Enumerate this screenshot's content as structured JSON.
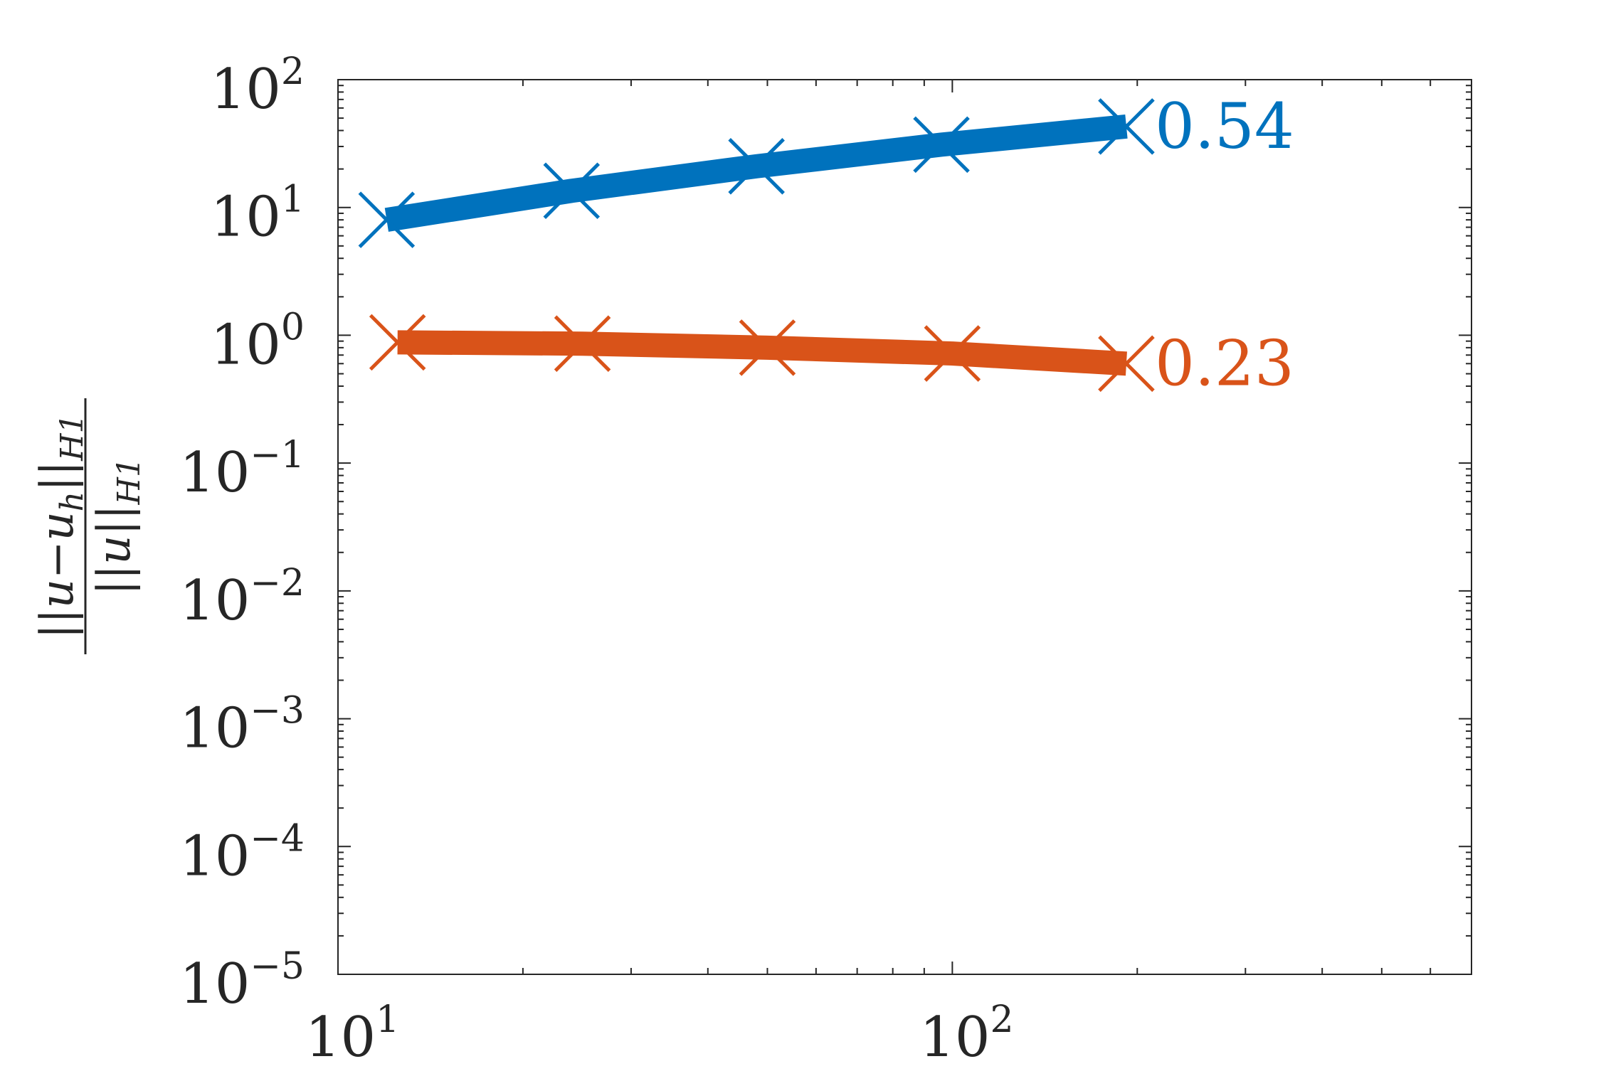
{
  "chart_data": {
    "type": "line",
    "x_scale": "log",
    "y_scale": "log",
    "xlim": [
      10,
      700
    ],
    "ylim": [
      1e-05,
      100
    ],
    "x_ticks": [
      {
        "value": 10,
        "base": "10",
        "exp": "1"
      },
      {
        "value": 100,
        "base": "10",
        "exp": "2"
      }
    ],
    "y_ticks": [
      {
        "value": 100,
        "base": "10",
        "exp": "2"
      },
      {
        "value": 10,
        "base": "10",
        "exp": "1"
      },
      {
        "value": 1,
        "base": "10",
        "exp": "0"
      },
      {
        "value": 0.1,
        "base": "10",
        "exp": "−1"
      },
      {
        "value": 0.01,
        "base": "10",
        "exp": "−2"
      },
      {
        "value": 0.001,
        "base": "10",
        "exp": "−3"
      },
      {
        "value": 0.0001,
        "base": "10",
        "exp": "−4"
      },
      {
        "value": 1e-05,
        "base": "10",
        "exp": "−5"
      }
    ],
    "ylabel": {
      "numerator": "||u−u",
      "numerator_sub_h": "h",
      "numerator_close": "||",
      "numerator_sub": "H1",
      "denominator": "||u||",
      "denominator_sub": "H1"
    },
    "grid": false,
    "series": [
      {
        "color": "#0072BD",
        "x": [
          12,
          24,
          48,
          96,
          192
        ],
        "y": [
          8,
          13.5,
          21,
          31,
          43
        ],
        "end_label": "0.54"
      },
      {
        "color": "#D95319",
        "x": [
          12.5,
          25,
          50,
          100,
          192
        ],
        "y": [
          0.88,
          0.86,
          0.8,
          0.72,
          0.6
        ],
        "end_label": "0.23"
      }
    ]
  }
}
